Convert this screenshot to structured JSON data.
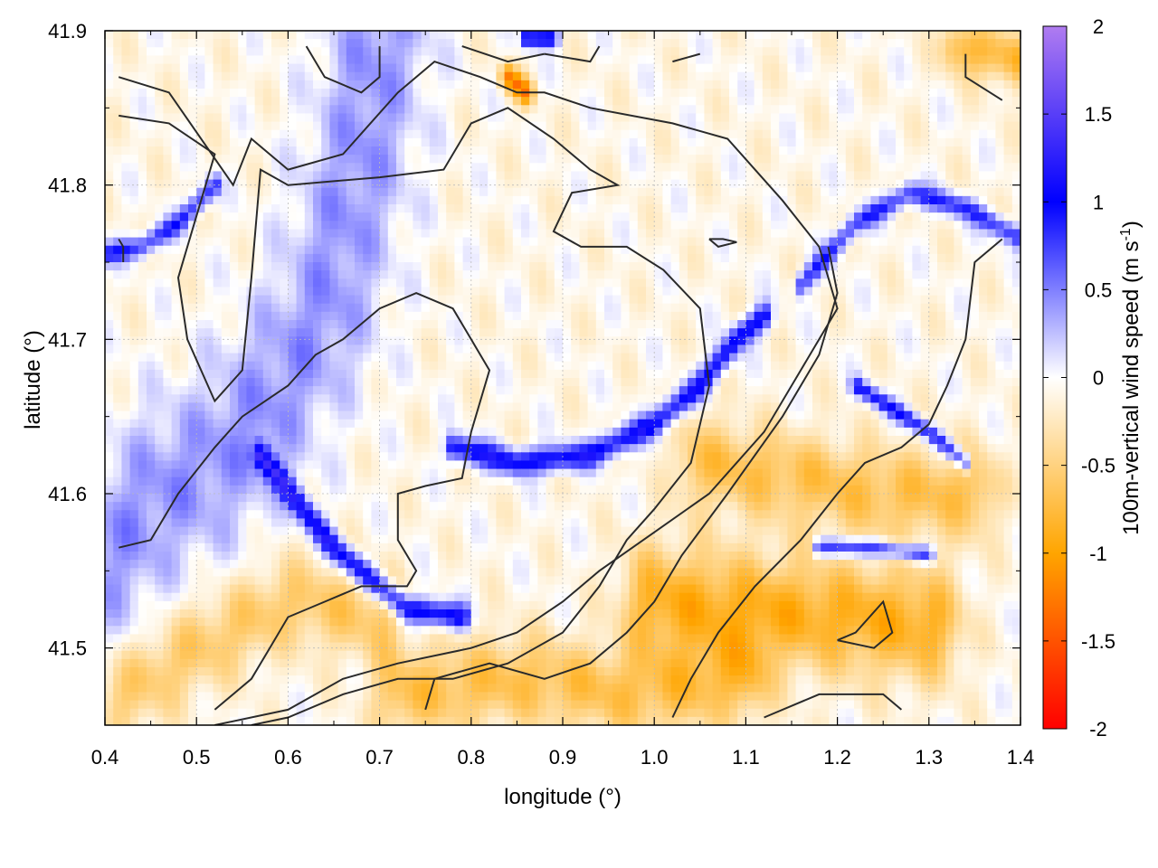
{
  "chart_data": {
    "type": "heatmap",
    "title": "",
    "xlabel": "longitude (°)",
    "ylabel": "latitude (°)",
    "xlim": [
      0.4,
      1.4
    ],
    "ylim": [
      41.45,
      41.9
    ],
    "x_ticks": [
      "0.4",
      "0.5",
      "0.6",
      "0.7",
      "0.8",
      "0.9",
      "1.0",
      "1.1",
      "1.2",
      "1.3",
      "1.4"
    ],
    "x_tick_values": [
      0.4,
      0.5,
      0.6,
      0.7,
      0.8,
      0.9,
      1.0,
      1.1,
      1.2,
      1.3,
      1.4
    ],
    "y_ticks": [
      "41.5",
      "41.6",
      "41.7",
      "41.8",
      "41.9"
    ],
    "y_tick_values": [
      41.5,
      41.6,
      41.7,
      41.8,
      41.9
    ],
    "grid": true,
    "colorbar": {
      "label_main": "100m-vertical wind speed (m s",
      "label_sup": "-1",
      "label_close": ")",
      "range": [
        -2,
        2
      ],
      "ticks": [
        "2",
        "1.5",
        "1",
        "0.5",
        "0",
        "-0.5",
        "-1",
        "-1.5",
        "-2"
      ],
      "tick_values": [
        2,
        1.5,
        1,
        0.5,
        0,
        -0.5,
        -1,
        -1.5,
        -2
      ],
      "stops": [
        {
          "value": -2,
          "color": "#ff0000"
        },
        {
          "value": -1,
          "color": "#ffa500"
        },
        {
          "value": 0,
          "color": "#ffffff"
        },
        {
          "value": 1,
          "color": "#0000ff"
        },
        {
          "value": 2,
          "color": "#b07cf0"
        }
      ]
    },
    "field_features": [
      {
        "name": "ridge-updraft-central",
        "value": 1.1,
        "path": [
          [
            0.78,
            41.63
          ],
          [
            0.85,
            41.62
          ],
          [
            0.93,
            41.625
          ],
          [
            1.0,
            41.645
          ],
          [
            1.05,
            41.67
          ],
          [
            1.09,
            41.7
          ],
          [
            1.12,
            41.715
          ]
        ],
        "width": 0.006
      },
      {
        "name": "updraft-southwest",
        "value": 1.2,
        "path": [
          [
            0.57,
            41.625
          ],
          [
            0.61,
            41.595
          ],
          [
            0.65,
            41.565
          ],
          [
            0.69,
            41.545
          ],
          [
            0.73,
            41.525
          ],
          [
            0.79,
            41.52
          ]
        ],
        "width": 0.006
      },
      {
        "name": "updraft-west",
        "value": 0.9,
        "path": [
          [
            0.4,
            41.755
          ],
          [
            0.44,
            41.76
          ],
          [
            0.48,
            41.775
          ],
          [
            0.52,
            41.8
          ]
        ],
        "width": 0.005
      },
      {
        "name": "updraft-northeast",
        "value": 0.9,
        "path": [
          [
            1.16,
            41.735
          ],
          [
            1.22,
            41.775
          ],
          [
            1.28,
            41.795
          ],
          [
            1.34,
            41.785
          ],
          [
            1.4,
            41.765
          ]
        ],
        "width": 0.005
      },
      {
        "name": "updraft-east",
        "value": 1.0,
        "path": [
          [
            1.22,
            41.67
          ],
          [
            1.26,
            41.655
          ],
          [
            1.3,
            41.64
          ],
          [
            1.34,
            41.62
          ]
        ],
        "width": 0.004
      },
      {
        "name": "updraft-southeast",
        "value": 1.0,
        "path": [
          [
            1.18,
            41.565
          ],
          [
            1.24,
            41.565
          ],
          [
            1.3,
            41.56
          ]
        ],
        "width": 0.004
      },
      {
        "name": "downdraft-southeast",
        "value": -0.8,
        "path": [
          [
            1.0,
            41.53
          ],
          [
            1.1,
            41.525
          ],
          [
            1.2,
            41.52
          ],
          [
            1.3,
            41.515
          ]
        ],
        "width": 0.025
      },
      {
        "name": "downdraft-south",
        "value": -0.6,
        "path": [
          [
            0.72,
            41.47
          ],
          [
            0.85,
            41.48
          ],
          [
            0.98,
            41.47
          ],
          [
            1.1,
            41.48
          ]
        ],
        "width": 0.02
      },
      {
        "name": "downdraft-east",
        "value": -0.6,
        "path": [
          [
            1.05,
            41.62
          ],
          [
            1.15,
            41.61
          ],
          [
            1.25,
            41.6
          ],
          [
            1.35,
            41.6
          ]
        ],
        "width": 0.02
      },
      {
        "name": "downdraft-north",
        "value": -1.1,
        "path": [
          [
            0.84,
            41.87
          ],
          [
            0.86,
            41.86
          ]
        ],
        "width": 0.006
      },
      {
        "name": "updraft-north",
        "value": 1.2,
        "path": [
          [
            0.86,
            41.895
          ],
          [
            0.89,
            41.895
          ]
        ],
        "width": 0.004
      },
      {
        "name": "downdraft-northeast",
        "value": -0.7,
        "path": [
          [
            1.33,
            41.89
          ],
          [
            1.4,
            41.88
          ]
        ],
        "width": 0.012
      },
      {
        "name": "updraft-broad-west",
        "value": 0.5,
        "path": [
          [
            0.4,
            41.56
          ],
          [
            0.46,
            41.6
          ],
          [
            0.52,
            41.62
          ],
          [
            0.58,
            41.66
          ],
          [
            0.64,
            41.72
          ],
          [
            0.68,
            41.82
          ],
          [
            0.7,
            41.9
          ]
        ],
        "width": 0.04
      },
      {
        "name": "downdraft-southwest",
        "value": -0.5,
        "path": [
          [
            0.42,
            41.47
          ],
          [
            0.5,
            41.5
          ],
          [
            0.6,
            41.53
          ],
          [
            0.7,
            41.52
          ]
        ],
        "width": 0.02
      }
    ],
    "contours": [
      [
        [
          0.415,
          41.87
        ],
        [
          0.47,
          41.86
        ],
        [
          0.54,
          41.8
        ],
        [
          0.56,
          41.83
        ],
        [
          0.6,
          41.81
        ],
        [
          0.66,
          41.82
        ],
        [
          0.72,
          41.86
        ],
        [
          0.76,
          41.88
        ],
        [
          0.81,
          41.87
        ],
        [
          0.85,
          41.86
        ],
        [
          0.88,
          41.86
        ],
        [
          0.93,
          41.85
        ],
        [
          1.02,
          41.84
        ],
        [
          1.08,
          41.83
        ],
        [
          1.14,
          41.79
        ],
        [
          1.18,
          41.76
        ],
        [
          1.2,
          41.72
        ],
        [
          1.16,
          41.68
        ],
        [
          1.12,
          41.64
        ],
        [
          1.06,
          41.6
        ],
        [
          1.0,
          41.575
        ],
        [
          0.94,
          41.55
        ],
        [
          0.9,
          41.53
        ],
        [
          0.85,
          41.51
        ],
        [
          0.8,
          41.5
        ],
        [
          0.72,
          41.49
        ],
        [
          0.66,
          41.48
        ],
        [
          0.6,
          41.46
        ],
        [
          0.52,
          41.45
        ]
      ],
      [
        [
          0.415,
          41.845
        ],
        [
          0.47,
          41.84
        ],
        [
          0.52,
          41.82
        ],
        [
          0.5,
          41.78
        ],
        [
          0.48,
          41.74
        ],
        [
          0.49,
          41.7
        ],
        [
          0.52,
          41.66
        ],
        [
          0.55,
          41.68
        ],
        [
          0.56,
          41.74
        ],
        [
          0.57,
          41.81
        ],
        [
          0.6,
          41.8
        ],
        [
          0.7,
          41.805
        ],
        [
          0.77,
          41.81
        ],
        [
          0.8,
          41.84
        ],
        [
          0.84,
          41.85
        ],
        [
          0.89,
          41.83
        ],
        [
          0.93,
          41.81
        ],
        [
          0.96,
          41.8
        ],
        [
          0.91,
          41.795
        ],
        [
          0.89,
          41.77
        ],
        [
          0.92,
          41.76
        ],
        [
          0.97,
          41.76
        ],
        [
          1.01,
          41.745
        ],
        [
          1.05,
          41.72
        ],
        [
          1.06,
          41.67
        ],
        [
          1.04,
          41.62
        ],
        [
          1.0,
          41.59
        ],
        [
          0.97,
          41.57
        ],
        [
          0.94,
          41.54
        ],
        [
          0.9,
          41.51
        ],
        [
          0.84,
          41.49
        ],
        [
          0.78,
          41.48
        ],
        [
          0.72,
          41.48
        ],
        [
          0.66,
          41.47
        ],
        [
          0.6,
          41.455
        ],
        [
          0.56,
          41.45
        ]
      ],
      [
        [
          0.415,
          41.565
        ],
        [
          0.45,
          41.57
        ],
        [
          0.48,
          41.6
        ],
        [
          0.52,
          41.63
        ],
        [
          0.55,
          41.65
        ],
        [
          0.6,
          41.67
        ],
        [
          0.63,
          41.69
        ],
        [
          0.66,
          41.7
        ],
        [
          0.7,
          41.72
        ],
        [
          0.74,
          41.73
        ],
        [
          0.78,
          41.72
        ],
        [
          0.8,
          41.7
        ],
        [
          0.82,
          41.68
        ],
        [
          0.8,
          41.64
        ],
        [
          0.79,
          41.61
        ],
        [
          0.75,
          41.605
        ],
        [
          0.72,
          41.6
        ],
        [
          0.72,
          41.57
        ],
        [
          0.74,
          41.55
        ],
        [
          0.73,
          41.54
        ],
        [
          0.68,
          41.54
        ],
        [
          0.64,
          41.53
        ],
        [
          0.6,
          41.52
        ],
        [
          0.58,
          41.5
        ],
        [
          0.56,
          41.48
        ],
        [
          0.52,
          41.46
        ]
      ],
      [
        [
          0.62,
          41.89
        ],
        [
          0.64,
          41.87
        ],
        [
          0.68,
          41.86
        ],
        [
          0.7,
          41.87
        ],
        [
          0.7,
          41.89
        ]
      ],
      [
        [
          0.79,
          41.89
        ],
        [
          0.84,
          41.88
        ],
        [
          0.88,
          41.885
        ]
      ],
      [
        [
          0.88,
          41.885
        ],
        [
          0.93,
          41.88
        ],
        [
          0.94,
          41.89
        ]
      ],
      [
        [
          1.02,
          41.88
        ],
        [
          1.05,
          41.885
        ]
      ],
      [
        [
          1.34,
          41.885
        ],
        [
          1.34,
          41.87
        ],
        [
          1.38,
          41.855
        ]
      ],
      [
        [
          0.415,
          41.765
        ],
        [
          0.42,
          41.76
        ],
        [
          0.42,
          41.75
        ]
      ],
      [
        [
          1.06,
          41.765
        ],
        [
          1.075,
          41.765
        ],
        [
          1.09,
          41.763
        ],
        [
          1.07,
          41.76
        ],
        [
          1.06,
          41.765
        ]
      ],
      [
        [
          1.2,
          41.505
        ],
        [
          1.22,
          41.51
        ],
        [
          1.25,
          41.53
        ],
        [
          1.26,
          41.51
        ],
        [
          1.24,
          41.5
        ],
        [
          1.2,
          41.505
        ]
      ],
      [
        [
          1.12,
          41.455
        ],
        [
          1.18,
          41.47
        ],
        [
          1.25,
          41.47
        ],
        [
          1.27,
          41.46
        ]
      ],
      [
        [
          0.75,
          41.46
        ],
        [
          0.76,
          41.48
        ],
        [
          0.82,
          41.49
        ],
        [
          0.88,
          41.48
        ],
        [
          0.93,
          41.49
        ],
        [
          0.97,
          41.51
        ],
        [
          1.0,
          41.53
        ],
        [
          1.03,
          41.56
        ],
        [
          1.08,
          41.6
        ],
        [
          1.14,
          41.65
        ],
        [
          1.18,
          41.69
        ],
        [
          1.2,
          41.73
        ],
        [
          1.19,
          41.76
        ]
      ],
      [
        [
          1.02,
          41.455
        ],
        [
          1.04,
          41.48
        ],
        [
          1.07,
          41.51
        ],
        [
          1.11,
          41.54
        ],
        [
          1.16,
          41.57
        ],
        [
          1.2,
          41.6
        ],
        [
          1.23,
          41.62
        ],
        [
          1.27,
          41.63
        ],
        [
          1.3,
          41.645
        ],
        [
          1.32,
          41.67
        ],
        [
          1.34,
          41.7
        ],
        [
          1.35,
          41.75
        ],
        [
          1.38,
          41.765
        ]
      ]
    ]
  }
}
